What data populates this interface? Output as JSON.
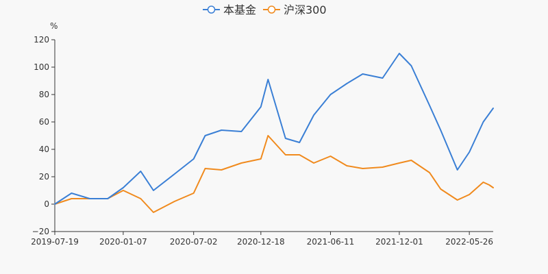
{
  "chart_data": {
    "type": "line",
    "title": "",
    "xlabel": "",
    "ylabel": "%",
    "ylim": [
      -20,
      120
    ],
    "yticks": [
      -20,
      0,
      20,
      40,
      60,
      80,
      100,
      120
    ],
    "grid": false,
    "legend_position": "top-center",
    "x_tick_labels": [
      "2019-07-19",
      "2020-01-07",
      "2020-07-02",
      "2020-12-18",
      "2021-06-11",
      "2021-12-01",
      "2022-05-26"
    ],
    "x": [
      "2019-07-19",
      "2019-08-30",
      "2019-10-15",
      "2019-11-29",
      "2020-01-07",
      "2020-02-20",
      "2020-03-23",
      "2020-05-15",
      "2020-07-02",
      "2020-07-31",
      "2020-09-10",
      "2020-10-30",
      "2020-12-18",
      "2021-01-05",
      "2021-02-18",
      "2021-03-25",
      "2021-04-30",
      "2021-06-11",
      "2021-07-22",
      "2021-08-31",
      "2021-10-20",
      "2021-12-01",
      "2021-12-31",
      "2022-02-15",
      "2022-03-15",
      "2022-04-26",
      "2022-05-26",
      "2022-06-30",
      "2022-07-15",
      "2022-07-25"
    ],
    "series": [
      {
        "name": "本基金",
        "color": "#3a7fd5",
        "values": [
          0,
          8,
          4,
          4,
          12,
          24,
          10,
          22,
          33,
          50,
          54,
          53,
          71,
          91,
          48,
          45,
          65,
          80,
          88,
          95,
          92,
          110,
          101,
          72,
          54,
          25,
          38,
          60,
          66,
          70
        ]
      },
      {
        "name": "沪深300",
        "color": "#f08a1d",
        "values": [
          0,
          4,
          4,
          4,
          10,
          4,
          -6,
          2,
          8,
          26,
          25,
          30,
          33,
          50,
          36,
          36,
          30,
          35,
          28,
          26,
          27,
          30,
          32,
          23,
          11,
          3,
          7,
          16,
          14,
          12
        ]
      }
    ]
  }
}
